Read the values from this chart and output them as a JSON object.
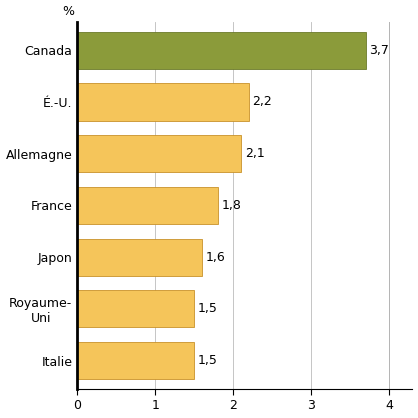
{
  "categories": [
    "Italie",
    "Royaume-\nUni",
    "Japon",
    "France",
    "Allemagne",
    "É.-U.",
    "Canada"
  ],
  "values": [
    1.5,
    1.5,
    1.6,
    1.8,
    2.1,
    2.2,
    3.7
  ],
  "labels": [
    "1,5",
    "1,5",
    "1,6",
    "1,8",
    "2,1",
    "2,2",
    "3,7"
  ],
  "bar_colors": [
    "#F5C55A",
    "#F5C55A",
    "#F5C55A",
    "#F5C55A",
    "#F5C55A",
    "#F5C55A",
    "#8B9B3A"
  ],
  "bar_edge_colors": [
    "#C8922A",
    "#C8922A",
    "#C8922A",
    "#C8922A",
    "#C8922A",
    "#C8922A",
    "#6B7A2A"
  ],
  "xlim": [
    0,
    4.3
  ],
  "xticks": [
    0,
    1,
    2,
    3,
    4
  ],
  "percent_label": "%",
  "figsize": [
    4.18,
    4.18
  ],
  "dpi": 100,
  "background_color": "#ffffff",
  "grid_color": "#bbbbbb",
  "label_fontsize": 9,
  "tick_fontsize": 9,
  "bar_height": 0.72
}
